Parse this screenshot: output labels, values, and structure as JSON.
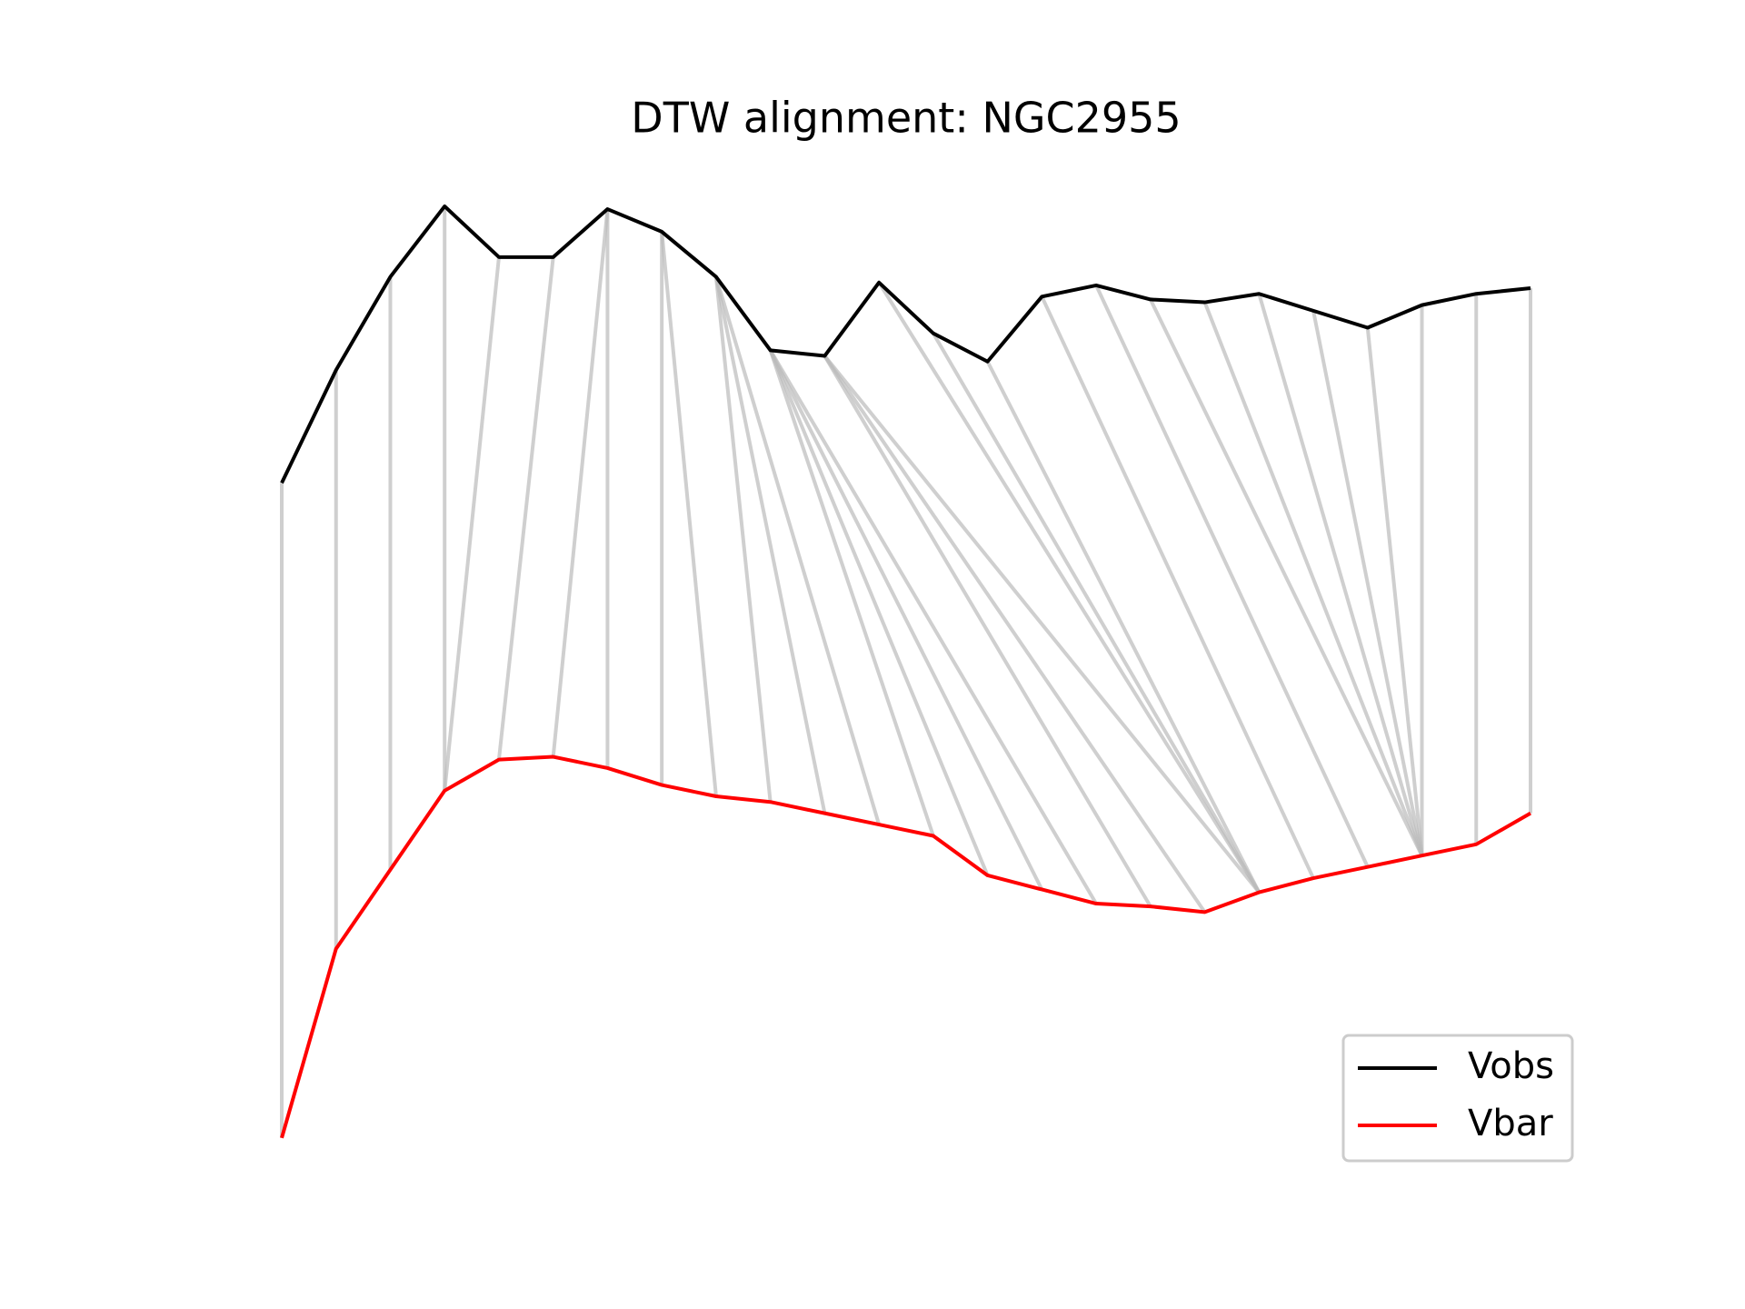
{
  "chart_data": {
    "type": "line",
    "title": "DTW alignment: NGC2955",
    "x": [
      0,
      1,
      2,
      3,
      4,
      5,
      6,
      7,
      8,
      9,
      10,
      11,
      12,
      13,
      14,
      15,
      16,
      17,
      18,
      19,
      20,
      21,
      22,
      23
    ],
    "xlim": [
      0,
      23
    ],
    "ylim": [
      0,
      360
    ],
    "series": [
      {
        "name": "Vobs",
        "color": "#000000",
        "values": [
          253,
          293,
          326,
          351,
          333,
          333,
          350,
          342,
          326,
          300,
          298,
          324,
          306,
          296,
          319,
          323,
          318,
          317,
          320,
          314,
          308,
          316,
          320,
          322
        ]
      },
      {
        "name": "Vbar",
        "color": "#ff0000",
        "values": [
          21,
          88,
          116,
          144,
          155,
          156,
          152,
          146,
          142,
          140,
          136,
          132,
          128,
          114,
          109,
          104,
          103,
          101,
          108,
          113,
          117,
          121,
          125,
          136
        ]
      }
    ],
    "alignment": [
      [
        0,
        0
      ],
      [
        1,
        1
      ],
      [
        2,
        2
      ],
      [
        3,
        3
      ],
      [
        4,
        3
      ],
      [
        5,
        4
      ],
      [
        6,
        5
      ],
      [
        6,
        6
      ],
      [
        7,
        7
      ],
      [
        7,
        8
      ],
      [
        8,
        9
      ],
      [
        8,
        10
      ],
      [
        8,
        11
      ],
      [
        9,
        12
      ],
      [
        9,
        13
      ],
      [
        9,
        14
      ],
      [
        9,
        15
      ],
      [
        10,
        16
      ],
      [
        10,
        17
      ],
      [
        10,
        18
      ],
      [
        11,
        18
      ],
      [
        12,
        18
      ],
      [
        13,
        18
      ],
      [
        14,
        19
      ],
      [
        15,
        20
      ],
      [
        16,
        21
      ],
      [
        17,
        21
      ],
      [
        18,
        21
      ],
      [
        19,
        21
      ],
      [
        20,
        21
      ],
      [
        21,
        21
      ],
      [
        22,
        22
      ],
      [
        23,
        23
      ]
    ],
    "alignment_color": "#bbbbbb",
    "legend": "lower right"
  }
}
